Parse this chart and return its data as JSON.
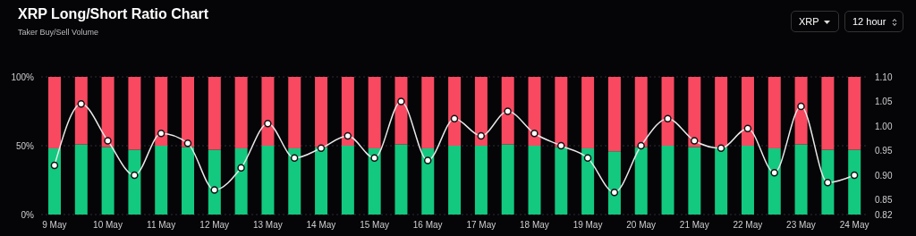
{
  "chart_data": {
    "type": "bar",
    "title": "XRP Long/Short Ratio Chart",
    "subtitle": "Taker Buy/Sell Volume",
    "annotations": [
      "XRP",
      "12 hour"
    ],
    "categories": [
      "9 May",
      null,
      "10 May",
      null,
      "11 May",
      null,
      "12 May",
      null,
      "13 May",
      null,
      "14 May",
      null,
      "15 May",
      null,
      "16 May",
      null,
      "17 May",
      null,
      "18 May",
      null,
      "19 May",
      null,
      "20 May",
      null,
      "21 May",
      null,
      "22 May",
      null,
      "23 May",
      null,
      "24 May"
    ],
    "stacked": true,
    "series": [
      {
        "color": "#12c97f",
        "values": [
          48,
          51,
          49,
          47,
          50,
          49,
          47,
          48,
          50,
          48,
          49,
          50,
          48,
          51,
          48,
          50,
          50,
          51,
          50,
          49,
          48,
          46,
          49,
          50,
          49,
          49,
          50,
          48,
          51,
          47,
          47
        ]
      },
      {
        "color": "#f84960",
        "values": [
          52,
          49,
          51,
          53,
          50,
          51,
          53,
          52,
          50,
          52,
          51,
          50,
          52,
          49,
          52,
          50,
          50,
          49,
          50,
          51,
          52,
          54,
          51,
          50,
          51,
          51,
          50,
          52,
          49,
          53,
          53
        ]
      },
      {
        "type": "line",
        "axis": "y2",
        "color": "#e8e8e8",
        "marker": "circle",
        "values": [
          0.92,
          1.045,
          0.97,
          0.9,
          0.985,
          0.965,
          0.87,
          0.915,
          1.005,
          0.935,
          0.955,
          0.98,
          0.935,
          1.05,
          0.93,
          1.015,
          0.98,
          1.03,
          0.985,
          0.96,
          0.935,
          0.865,
          0.96,
          1.015,
          0.97,
          0.955,
          0.995,
          0.905,
          1.04,
          0.885,
          0.9
        ]
      }
    ],
    "ylim": [
      0,
      100
    ],
    "yticks": [
      {
        "value": 0,
        "label": "0%"
      },
      {
        "value": 50,
        "label": "50%"
      },
      {
        "value": 100,
        "label": "100%"
      }
    ],
    "y2lim": [
      0.82,
      1.1
    ],
    "y2ticks": [
      {
        "value": 0.82,
        "label": "0.82"
      },
      {
        "value": 0.85,
        "label": "0.85"
      },
      {
        "value": 0.9,
        "label": "0.90"
      },
      {
        "value": 0.95,
        "label": "0.95"
      },
      {
        "value": 1,
        "label": "1.00"
      },
      {
        "value": 1.05,
        "label": "1.05"
      },
      {
        "value": 1.1,
        "label": "1.10"
      }
    ],
    "grid": "y"
  }
}
